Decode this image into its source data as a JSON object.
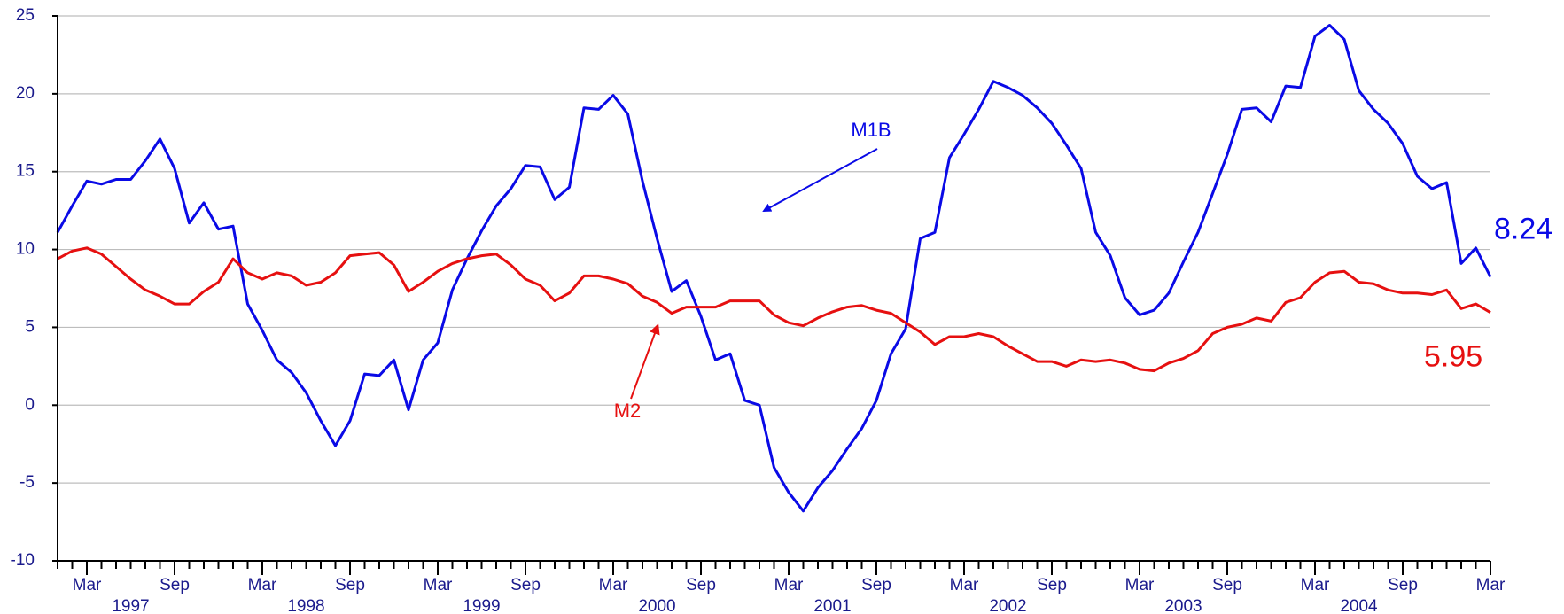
{
  "chart_data": {
    "type": "line",
    "x": [
      "1997-01",
      "1997-02",
      "1997-03",
      "1997-04",
      "1997-05",
      "1997-06",
      "1997-07",
      "1997-08",
      "1997-09",
      "1997-10",
      "1997-11",
      "1997-12",
      "1998-01",
      "1998-02",
      "1998-03",
      "1998-04",
      "1998-05",
      "1998-06",
      "1998-07",
      "1998-08",
      "1998-09",
      "1998-10",
      "1998-11",
      "1998-12",
      "1999-01",
      "1999-02",
      "1999-03",
      "1999-04",
      "1999-05",
      "1999-06",
      "1999-07",
      "1999-08",
      "1999-09",
      "1999-10",
      "1999-11",
      "1999-12",
      "2000-01",
      "2000-02",
      "2000-03",
      "2000-04",
      "2000-05",
      "2000-06",
      "2000-07",
      "2000-08",
      "2000-09",
      "2000-10",
      "2000-11",
      "2000-12",
      "2001-01",
      "2001-02",
      "2001-03",
      "2001-04",
      "2001-05",
      "2001-06",
      "2001-07",
      "2001-08",
      "2001-09",
      "2001-10",
      "2001-11",
      "2001-12",
      "2002-01",
      "2002-02",
      "2002-03",
      "2002-04",
      "2002-05",
      "2002-06",
      "2002-07",
      "2002-08",
      "2002-09",
      "2002-10",
      "2002-11",
      "2002-12",
      "2003-01",
      "2003-02",
      "2003-03",
      "2003-04",
      "2003-05",
      "2003-06",
      "2003-07",
      "2003-08",
      "2003-09",
      "2003-10",
      "2003-11",
      "2003-12",
      "2004-01",
      "2004-02",
      "2004-03",
      "2004-04",
      "2004-05",
      "2004-06",
      "2004-07",
      "2004-08",
      "2004-09",
      "2004-10",
      "2004-11",
      "2004-12",
      "2005-01",
      "2005-02",
      "2005-03"
    ],
    "series": [
      {
        "name": "M1B",
        "color": "#0a0ae6",
        "values": [
          11.1,
          12.8,
          14.4,
          14.2,
          14.5,
          14.5,
          15.7,
          17.1,
          15.2,
          11.7,
          13.0,
          11.3,
          11.5,
          6.5,
          4.8,
          2.9,
          2.1,
          0.8,
          -1.0,
          -2.6,
          -1.0,
          2.0,
          1.9,
          2.9,
          -0.3,
          2.9,
          4.0,
          7.4,
          9.4,
          11.2,
          12.8,
          13.9,
          15.4,
          15.3,
          13.2,
          14.0,
          19.1,
          19.0,
          19.9,
          18.7,
          14.4,
          10.7,
          7.3,
          8.0,
          5.7,
          2.9,
          3.3,
          0.3,
          0,
          -4.0,
          -5.6,
          -6.8,
          -5.3,
          -4.2,
          -2.8,
          -1.5,
          0.3,
          3.3,
          4.9,
          10.7,
          11.1,
          15.9,
          17.4,
          19.0,
          20.8,
          20.4,
          19.9,
          19.1,
          18.1,
          16.7,
          15.2,
          11.1,
          9.6,
          6.9,
          5.8,
          6.1,
          7.2,
          9.2,
          11.1,
          13.6,
          16.1,
          19.0,
          19.1,
          18.2,
          20.5,
          20.4,
          23.7,
          24.4,
          23.5,
          20.2,
          19.0,
          18.1,
          16.8,
          14.7,
          13.9,
          14.3,
          9.1,
          10.1,
          8.24
        ]
      },
      {
        "name": "M2",
        "color": "#e61010",
        "values": [
          9.4,
          9.9,
          10.1,
          9.7,
          8.9,
          8.1,
          7.4,
          7.0,
          6.5,
          6.5,
          7.3,
          7.9,
          9.4,
          8.5,
          8.1,
          8.5,
          8.3,
          7.7,
          7.9,
          8.5,
          9.6,
          9.7,
          9.8,
          9.0,
          7.3,
          7.9,
          8.6,
          9.1,
          9.4,
          9.6,
          9.7,
          9.0,
          8.1,
          7.7,
          6.7,
          7.2,
          8.3,
          8.3,
          8.1,
          7.8,
          7.0,
          6.6,
          5.9,
          6.3,
          6.3,
          6.3,
          6.7,
          6.7,
          6.7,
          5.8,
          5.3,
          5.1,
          5.6,
          6.0,
          6.3,
          6.4,
          6.1,
          5.9,
          5.3,
          4.7,
          3.9,
          4.4,
          4.4,
          4.6,
          4.4,
          3.8,
          3.3,
          2.8,
          2.8,
          2.5,
          2.9,
          2.8,
          2.9,
          2.7,
          2.3,
          2.2,
          2.7,
          3.0,
          3.5,
          4.6,
          5.0,
          5.2,
          5.6,
          5.4,
          6.6,
          6.9,
          7.9,
          8.5,
          8.6,
          7.9,
          7.8,
          7.4,
          7.2,
          7.2,
          7.1,
          7.4,
          6.2,
          6.5,
          5.95
        ]
      }
    ],
    "ylim": [
      -10,
      25
    ],
    "yticks": [
      -10,
      -5,
      0,
      5,
      10,
      15,
      20,
      25
    ],
    "grid": true,
    "xticks": [
      {
        "value": "1997-03",
        "label": "Mar"
      },
      {
        "value": "1997-09",
        "label": "Sep"
      },
      {
        "value": "1998-03",
        "label": "Mar"
      },
      {
        "value": "1998-09",
        "label": "Sep"
      },
      {
        "value": "1999-03",
        "label": "Mar"
      },
      {
        "value": "1999-09",
        "label": "Sep"
      },
      {
        "value": "2000-03",
        "label": "Mar"
      },
      {
        "value": "2000-09",
        "label": "Sep"
      },
      {
        "value": "2001-03",
        "label": "Mar"
      },
      {
        "value": "2001-09",
        "label": "Sep"
      },
      {
        "value": "2002-03",
        "label": "Mar"
      },
      {
        "value": "2002-09",
        "label": "Sep"
      },
      {
        "value": "2003-03",
        "label": "Mar"
      },
      {
        "value": "2003-09",
        "label": "Sep"
      },
      {
        "value": "2004-03",
        "label": "Mar"
      },
      {
        "value": "2004-09",
        "label": "Sep"
      },
      {
        "value": "2005-03",
        "label": "Mar"
      }
    ],
    "year_labels": [
      {
        "value": "1997-06",
        "label": "1997"
      },
      {
        "value": "1998-06",
        "label": "1998"
      },
      {
        "value": "1999-06",
        "label": "1999"
      },
      {
        "value": "2000-06",
        "label": "2000"
      },
      {
        "value": "2001-06",
        "label": "2001"
      },
      {
        "value": "2002-06",
        "label": "2002"
      },
      {
        "value": "2003-06",
        "label": "2003"
      },
      {
        "value": "2004-06",
        "label": "2004"
      }
    ]
  }
}
